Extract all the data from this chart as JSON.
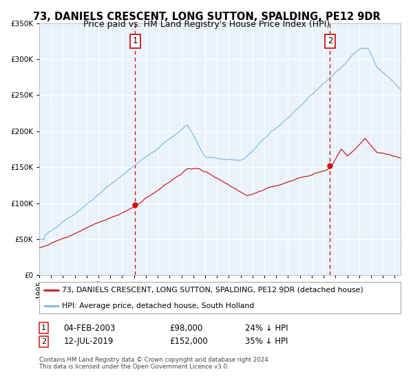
{
  "title": "73, DANIELS CRESCENT, LONG SUTTON, SPALDING, PE12 9DR",
  "subtitle": "Price paid vs. HM Land Registry's House Price Index (HPI)",
  "sale1": {
    "date": "04-FEB-2003",
    "price": 98000,
    "pct": "24%",
    "label": "1",
    "year": 2003.09
  },
  "sale2": {
    "date": "12-JUL-2019",
    "price": 152000,
    "pct": "35%",
    "label": "2",
    "year": 2019.54
  },
  "legend_property": "73, DANIELS CRESCENT, LONG SUTTON, SPALDING, PE12 9DR (detached house)",
  "legend_hpi": "HPI: Average price, detached house, South Holland",
  "footer1": "Contains HM Land Registry data © Crown copyright and database right 2024.",
  "footer2": "This data is licensed under the Open Government Licence v3.0.",
  "ylim": [
    0,
    350000
  ],
  "xlim_start": 1995.0,
  "xlim_end": 2025.5,
  "bg_color": "#ddeaf7",
  "plot_bg": "#eaf3fb",
  "grid_color": "#ffffff",
  "hpi_color": "#7ab8e0",
  "price_color": "#cc1111",
  "marker_color": "#cc1111",
  "vline_color": "#cc1111",
  "box_edgecolor": "#cc1111",
  "title_fontsize": 10.5,
  "subtitle_fontsize": 9,
  "axis_fontsize": 8,
  "tick_fontsize": 7.5
}
